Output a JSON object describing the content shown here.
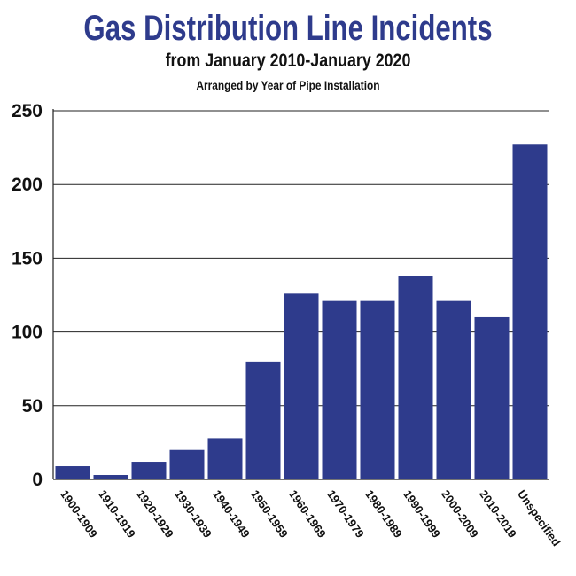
{
  "colors": {
    "bar": "#2e3b8c",
    "title": "#2e3b8c",
    "grid": "#222222"
  },
  "chart_data": {
    "type": "bar",
    "title": "Gas Distribution Line Incidents",
    "subtitle": "from January 2010-January 2020",
    "subtitle2": "Arranged by Year of Pipe Installation",
    "xlabel": "",
    "ylabel": "",
    "ylim": [
      0,
      250
    ],
    "yticks": [
      0,
      50,
      100,
      150,
      200,
      250
    ],
    "grid": true,
    "categories": [
      "1900-1909",
      "1910-1919",
      "1920-1929",
      "1930-1939",
      "1940-1949",
      "1950-1959",
      "1960-1969",
      "1970-1979",
      "1980-1989",
      "1990-1999",
      "2000-2009",
      "2010-2019",
      "Unspecified"
    ],
    "values": [
      9,
      3,
      12,
      20,
      28,
      80,
      126,
      121,
      121,
      138,
      121,
      110,
      227
    ]
  }
}
